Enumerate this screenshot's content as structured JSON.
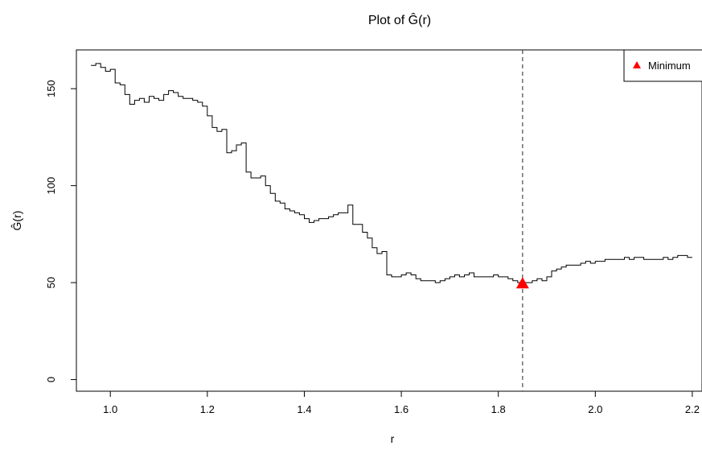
{
  "chart_data": {
    "type": "line",
    "title": "Plot of Ĝ(r)",
    "xlabel": "r",
    "ylabel": "Ĝ(r)",
    "xlim": [
      0.93,
      2.22
    ],
    "ylim": [
      -6,
      170
    ],
    "xticks": [
      1.0,
      1.2,
      1.4,
      1.6,
      1.8,
      2.0,
      2.2
    ],
    "xtick_labels": [
      "1.0",
      "1.2",
      "1.4",
      "1.6",
      "1.8",
      "2.0",
      "2.2"
    ],
    "yticks": [
      0,
      50,
      100,
      150
    ],
    "ytick_labels": [
      "0",
      "50",
      "100",
      "150"
    ],
    "grid": false,
    "legend": {
      "position": "top-right",
      "entries": [
        {
          "label": "Minimum",
          "marker": "triangle",
          "color": "#ff0000"
        }
      ]
    },
    "vline": {
      "x": 1.85,
      "style": "dashed",
      "color": "#555555"
    },
    "minimum_point": {
      "x": 1.85,
      "y": 49.5,
      "color": "#ff0000"
    },
    "series": [
      {
        "color": "#000000",
        "x": [
          0.96,
          0.97,
          0.98,
          0.99,
          1.0,
          1.01,
          1.02,
          1.03,
          1.04,
          1.05,
          1.06,
          1.07,
          1.08,
          1.09,
          1.1,
          1.11,
          1.12,
          1.13,
          1.14,
          1.15,
          1.16,
          1.17,
          1.18,
          1.19,
          1.2,
          1.21,
          1.22,
          1.23,
          1.24,
          1.25,
          1.26,
          1.27,
          1.28,
          1.29,
          1.3,
          1.31,
          1.32,
          1.33,
          1.34,
          1.35,
          1.36,
          1.37,
          1.38,
          1.39,
          1.4,
          1.41,
          1.42,
          1.43,
          1.44,
          1.45,
          1.46,
          1.47,
          1.48,
          1.49,
          1.5,
          1.51,
          1.52,
          1.53,
          1.54,
          1.55,
          1.56,
          1.57,
          1.58,
          1.59,
          1.6,
          1.61,
          1.62,
          1.63,
          1.64,
          1.65,
          1.66,
          1.67,
          1.68,
          1.69,
          1.7,
          1.71,
          1.72,
          1.73,
          1.74,
          1.75,
          1.76,
          1.77,
          1.78,
          1.79,
          1.8,
          1.81,
          1.82,
          1.83,
          1.84,
          1.85,
          1.86,
          1.87,
          1.88,
          1.89,
          1.9,
          1.91,
          1.92,
          1.93,
          1.94,
          1.95,
          1.96,
          1.97,
          1.98,
          1.99,
          2.0,
          2.01,
          2.02,
          2.03,
          2.04,
          2.05,
          2.06,
          2.07,
          2.08,
          2.09,
          2.1,
          2.11,
          2.12,
          2.13,
          2.14,
          2.15,
          2.16,
          2.17,
          2.18,
          2.19,
          2.2
        ],
        "y": [
          162,
          163,
          161,
          159,
          160,
          153,
          152,
          147,
          142,
          144,
          145,
          143,
          146,
          145,
          144,
          147,
          149,
          148,
          146,
          145,
          145,
          144,
          143,
          141,
          136,
          130,
          128,
          129,
          117,
          118,
          121,
          122,
          107,
          104,
          104,
          105,
          100,
          96,
          92,
          91,
          88,
          87,
          86,
          85,
          83,
          81,
          82,
          83,
          83,
          84,
          85,
          86,
          86,
          90,
          80,
          80,
          76,
          73,
          68,
          65,
          66,
          54,
          53,
          53,
          54,
          55,
          54,
          52,
          51,
          51,
          51,
          50,
          51,
          52,
          53,
          54,
          53,
          54,
          55,
          53,
          53,
          53,
          53,
          54,
          53,
          53,
          52,
          51,
          50,
          50,
          50,
          51,
          52,
          51,
          53,
          56,
          57,
          58,
          59,
          59,
          59,
          60,
          61,
          60,
          61,
          61,
          62,
          62,
          62,
          62,
          63,
          62,
          63,
          63,
          62,
          62,
          62,
          62,
          63,
          62,
          63,
          64,
          64,
          63,
          63
        ]
      }
    ]
  }
}
